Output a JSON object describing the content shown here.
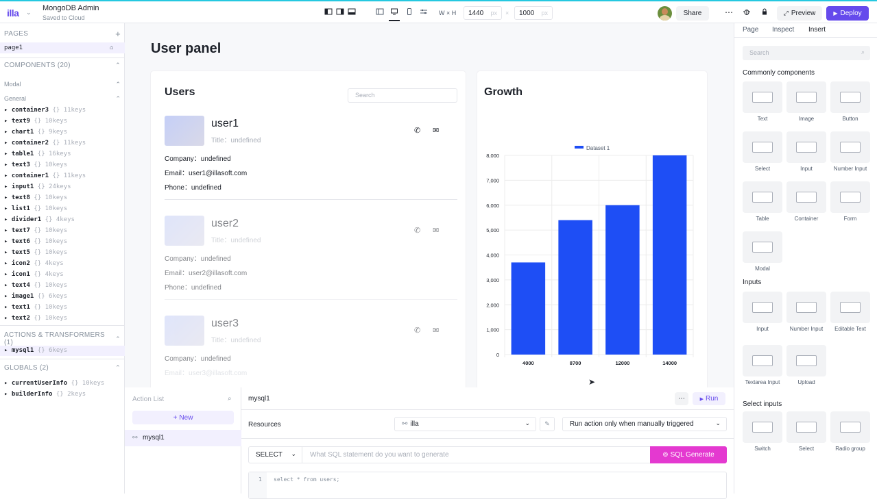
{
  "header": {
    "logo": "illa",
    "app_name": "MongoDB Admin",
    "save_status": "Saved to Cloud",
    "width_label": "W",
    "height_label": "H",
    "width_value": "1440",
    "height_value": "1000",
    "unit": "px",
    "times": "×",
    "share": "Share",
    "preview": "Preview",
    "deploy": "Deploy"
  },
  "left": {
    "pages_title": "PAGES",
    "page_item": "page1",
    "components_title": "COMPONENTS (20)",
    "modal_group": "Modal",
    "general_group": "General",
    "components": [
      {
        "name": "container3",
        "keys": "{} 11keys"
      },
      {
        "name": "text9",
        "keys": "{} 10keys"
      },
      {
        "name": "chart1",
        "keys": "{} 9keys"
      },
      {
        "name": "container2",
        "keys": "{} 11keys"
      },
      {
        "name": "table1",
        "keys": "{} 16keys"
      },
      {
        "name": "text3",
        "keys": "{} 10keys"
      },
      {
        "name": "container1",
        "keys": "{} 11keys"
      },
      {
        "name": "input1",
        "keys": "{} 24keys"
      },
      {
        "name": "text8",
        "keys": "{} 10keys"
      },
      {
        "name": "list1",
        "keys": "{} 10keys"
      },
      {
        "name": "divider1",
        "keys": "{} 4keys"
      },
      {
        "name": "text7",
        "keys": "{} 10keys"
      },
      {
        "name": "text6",
        "keys": "{} 10keys"
      },
      {
        "name": "text5",
        "keys": "{} 10keys"
      },
      {
        "name": "icon2",
        "keys": "{} 4keys"
      },
      {
        "name": "icon1",
        "keys": "{} 4keys"
      },
      {
        "name": "text4",
        "keys": "{} 10keys"
      },
      {
        "name": "image1",
        "keys": "{} 6keys"
      },
      {
        "name": "text1",
        "keys": "{} 10keys"
      },
      {
        "name": "text2",
        "keys": "{} 10keys"
      }
    ],
    "actions_title": "ACTIONS & TRANSFORMERS (1)",
    "actions": [
      {
        "name": "mysql1",
        "keys": "{} 6keys"
      }
    ],
    "globals_title": "GLOBALS (2)",
    "globals": [
      {
        "name": "currentUserInfo",
        "keys": "{} 10keys"
      },
      {
        "name": "builderInfo",
        "keys": "{} 2keys"
      }
    ]
  },
  "canvas": {
    "title": "User panel",
    "users_title": "Users",
    "search_placeholder": "Search",
    "growth_title": "Growth",
    "users": [
      {
        "name": "user1",
        "title": "Title：undefined",
        "company": "Company：undefined",
        "email": "Email：user1@illasoft.com",
        "phone": "Phone：undefined"
      },
      {
        "name": "user2",
        "title": "Title：undefined",
        "company": "Company：undefined",
        "email": "Email：user2@illasoft.com",
        "phone": "Phone：undefined"
      },
      {
        "name": "user3",
        "title": "Title：undefined",
        "company": "Company：undefined",
        "email": "Email：user3@illasoft.com",
        "phone": ""
      }
    ]
  },
  "chart_data": {
    "type": "bar",
    "categories": [
      "4000",
      "8700",
      "12000",
      "14000"
    ],
    "series": [
      {
        "name": "Dataset 1",
        "values": [
          3700,
          5400,
          6000,
          8000
        ]
      }
    ],
    "y_ticks": [
      "0",
      "1,000",
      "2,000",
      "3,000",
      "4,000",
      "5,000",
      "6,000",
      "7,000",
      "8,000"
    ],
    "ylim": [
      0,
      8000
    ],
    "grid": true,
    "legend": "top",
    "color": "#1e4ef5"
  },
  "actions_panel": {
    "title": "Action List",
    "new_button": "New",
    "items": [
      "mysql1"
    ]
  },
  "editor": {
    "action_name": "mysql1",
    "run": "Run",
    "resources_label": "Resources",
    "resource_value": "illa",
    "trigger_value": "Run action only when manually triggered",
    "mode": "SELECT",
    "generate_placeholder": "What SQL statement do you want to generate",
    "generate_button": "SQL Generate",
    "line_no": "1",
    "code": "select * from users;"
  },
  "right": {
    "tabs": [
      "Page",
      "Inspect",
      "Insert"
    ],
    "search_placeholder": "Search",
    "common_title": "Commonly components",
    "common": [
      "Text",
      "Image",
      "Button",
      "Select",
      "Input",
      "Number Input",
      "Table",
      "Container",
      "Form",
      "Modal"
    ],
    "inputs_title": "Inputs",
    "inputs": [
      "Input",
      "Number Input",
      "Editable Text",
      "Textarea Input",
      "Upload"
    ],
    "select_title": "Select inputs",
    "selects": [
      "Switch",
      "Select",
      "Radio group"
    ]
  },
  "colors": {
    "brand": "#654aec",
    "chart_bar": "#1e4ef5",
    "sql_generate": "#e439d0"
  }
}
